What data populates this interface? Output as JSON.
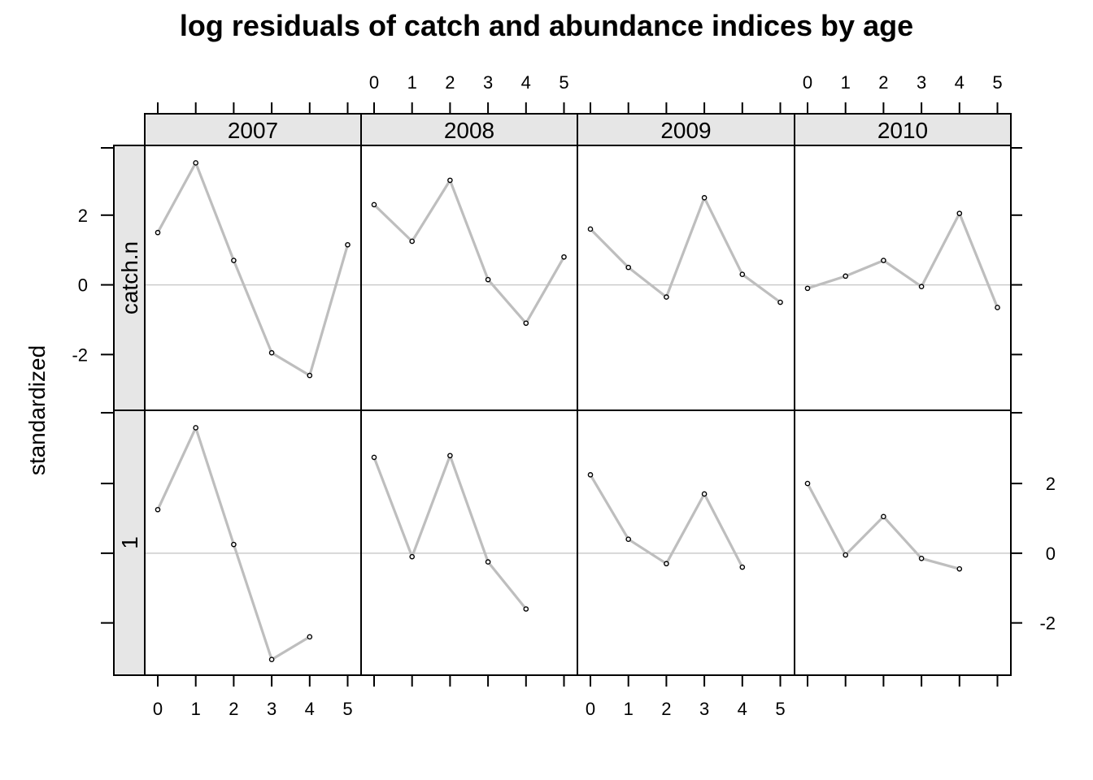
{
  "chart_data": {
    "type": "line",
    "title": "log residuals of catch and abundance indices by age",
    "ylabel": "standardized",
    "xlabel": "",
    "x_ticks": [
      0,
      1,
      2,
      3,
      4,
      5
    ],
    "years": [
      "2007",
      "2008",
      "2009",
      "2010"
    ],
    "indices": [
      "catch.n",
      "1"
    ],
    "panels_row_catch_n": {
      "ylim": [
        -3.6,
        4.0
      ],
      "y_ticks": [
        -2,
        0,
        2
      ],
      "panels": [
        {
          "year": "2007",
          "index": "catch.n",
          "x": [
            0,
            1,
            2,
            3,
            4,
            5
          ],
          "y": [
            1.5,
            3.5,
            0.7,
            -1.95,
            -2.6,
            1.15
          ]
        },
        {
          "year": "2008",
          "index": "catch.n",
          "x": [
            0,
            1,
            2,
            3,
            4,
            5
          ],
          "y": [
            2.3,
            1.25,
            3.0,
            0.15,
            -1.1,
            0.8
          ]
        },
        {
          "year": "2009",
          "index": "catch.n",
          "x": [
            0,
            1,
            2,
            3,
            4,
            5
          ],
          "y": [
            1.6,
            0.5,
            -0.35,
            2.5,
            0.3,
            -0.5
          ]
        },
        {
          "year": "2010",
          "index": "catch.n",
          "x": [
            0,
            1,
            2,
            3,
            4,
            5
          ],
          "y": [
            -0.1,
            0.25,
            0.7,
            -0.05,
            2.05,
            -0.65
          ]
        }
      ]
    },
    "panels_row_1": {
      "ylim": [
        -3.5,
        4.1
      ],
      "y_ticks": [
        -2,
        0,
        2
      ],
      "panels": [
        {
          "year": "2007",
          "index": "1",
          "x": [
            0,
            1,
            2,
            3,
            4
          ],
          "y": [
            1.25,
            3.6,
            0.25,
            -3.05,
            -2.4
          ]
        },
        {
          "year": "2008",
          "index": "1",
          "x": [
            0,
            1,
            2,
            3,
            4
          ],
          "y": [
            2.75,
            -0.1,
            2.8,
            -0.25,
            -1.6
          ]
        },
        {
          "year": "2009",
          "index": "1",
          "x": [
            0,
            1,
            2,
            3,
            4
          ],
          "y": [
            2.25,
            0.4,
            -0.3,
            1.7,
            -0.4
          ]
        },
        {
          "year": "2010",
          "index": "1",
          "x": [
            0,
            1,
            2,
            3,
            4
          ],
          "y": [
            2.0,
            -0.05,
            1.05,
            -0.15,
            -0.45
          ]
        }
      ]
    },
    "reference_line": 0,
    "line_color": "#bebebe",
    "strip_color": "#e6e6e6",
    "grid": false,
    "legend": "none"
  }
}
